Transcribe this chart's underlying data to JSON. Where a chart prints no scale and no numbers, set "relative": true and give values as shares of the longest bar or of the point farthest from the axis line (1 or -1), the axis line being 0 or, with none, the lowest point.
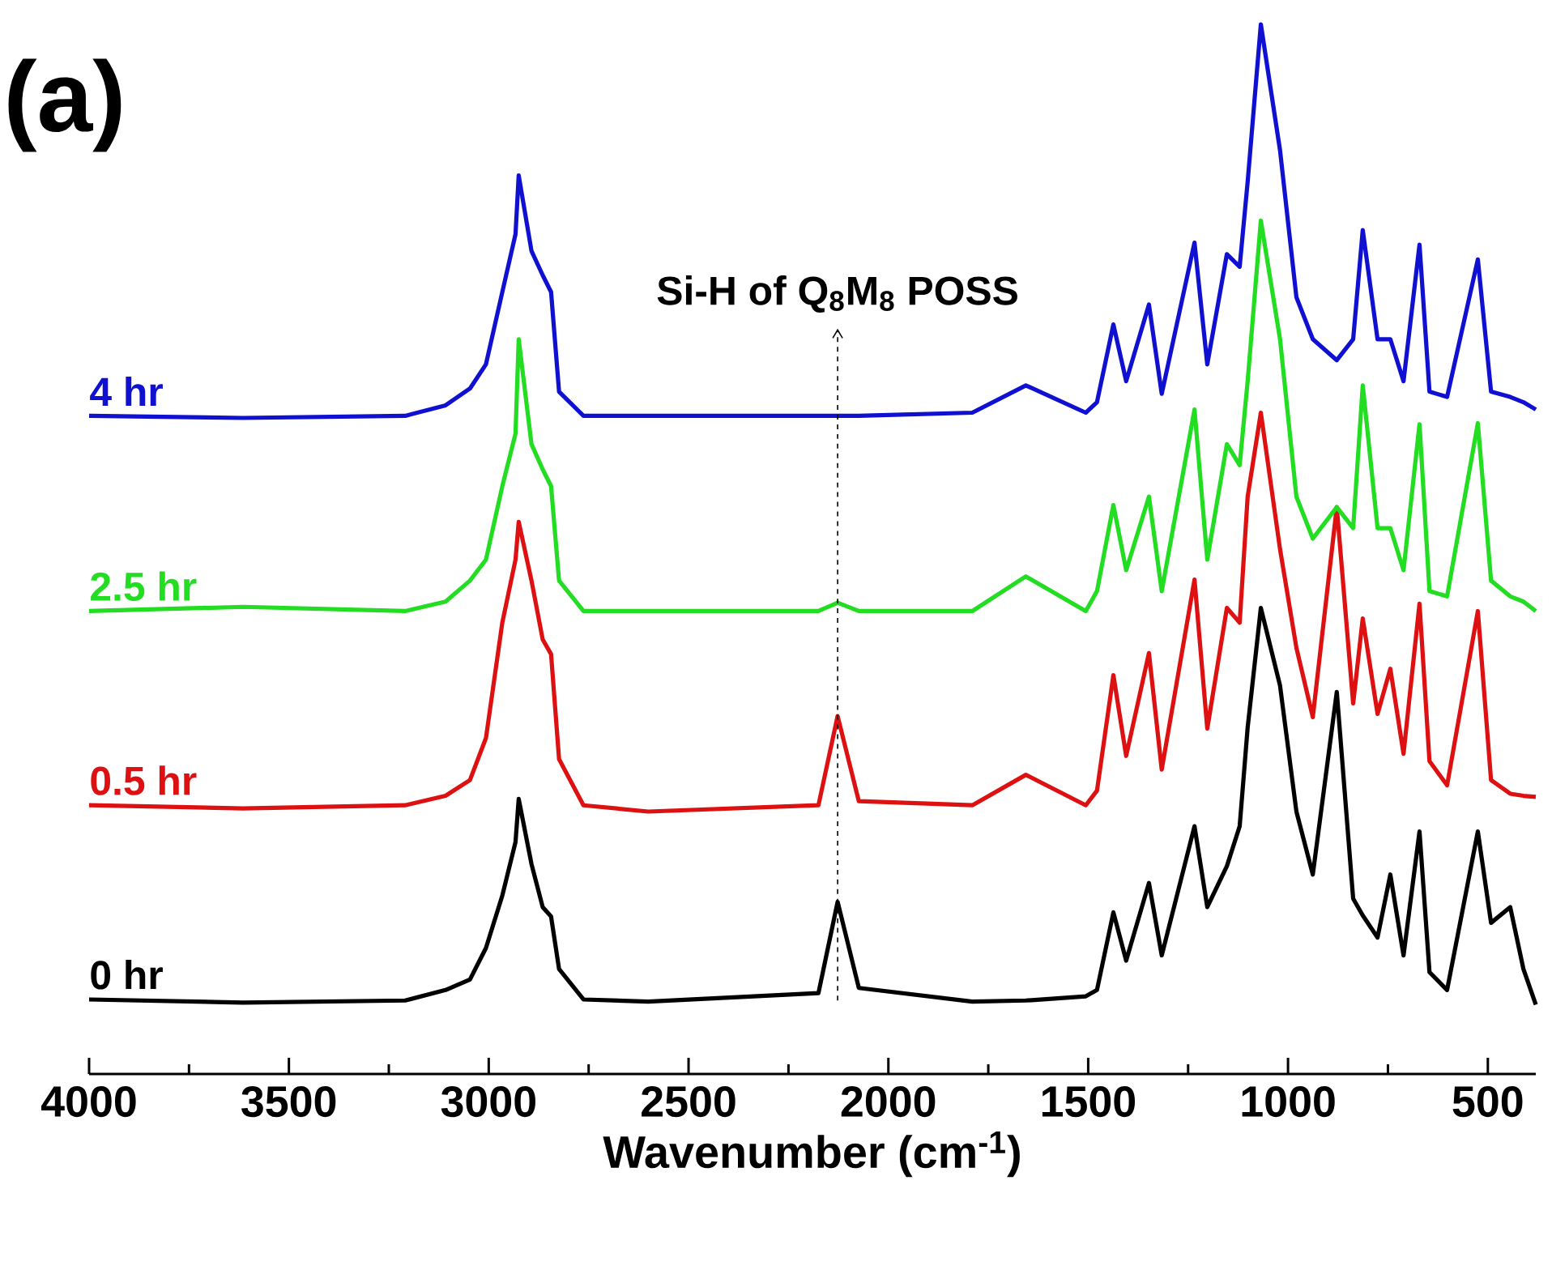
{
  "chart_data": {
    "type": "line",
    "title": "(a)",
    "xlabel": "Wavenumber (cm$^{-1}$)",
    "relative": true,
    "grid": false,
    "tick_labels": "x",
    "marker": "none",
    "line_style": "solid",
    "xlim": [
      4000,
      380
    ],
    "xticks": [
      4000,
      {
        "value": 3750,
        "label": null
      },
      3500,
      {
        "value": 3250,
        "label": null
      },
      3000,
      {
        "value": 2750,
        "label": null
      },
      2500,
      {
        "value": 2250,
        "label": null
      },
      2000,
      {
        "value": 1750,
        "label": null
      },
      1500,
      {
        "value": 1250,
        "label": null
      },
      1000,
      {
        "value": 750,
        "label": null
      },
      500
    ],
    "x": [
      4000,
      3615,
      3209,
      3108,
      3047,
      3007,
      2966,
      2933,
      2925,
      2893,
      2865,
      2844,
      2824,
      2763,
      2601,
      2175,
      2127,
      2074,
      1790,
      1656,
      1506,
      1478,
      1437,
      1405,
      1348,
      1316,
      1234,
      1202,
      1153,
      1121,
      1101,
      1068,
      1020,
      979,
      938,
      878,
      837,
      813,
      776,
      744,
      711,
      671,
      646,
      602,
      525,
      492,
      444,
      411,
      380
    ],
    "ref_lines": [
      {
        "axis": "x",
        "value": 2127,
        "label": "Si-H of Q$_{8}$M$_{8}$ POSS",
        "line_style": "dashed",
        "color": "#000000"
      }
    ],
    "series": [
      {
        "name": "0 hr",
        "color": "#000000",
        "values": [
          0.071,
          0.068,
          0.07,
          0.08,
          0.09,
          0.12,
          0.17,
          0.221,
          0.262,
          0.2,
          0.159,
          0.15,
          0.1,
          0.071,
          0.069,
          0.077,
          0.164,
          0.082,
          0.069,
          0.07,
          0.074,
          0.08,
          0.154,
          0.108,
          0.182,
          0.113,
          0.236,
          0.159,
          0.198,
          0.236,
          0.33,
          0.444,
          0.37,
          0.25,
          0.19,
          0.364,
          0.167,
          0.151,
          0.13,
          0.19,
          0.113,
          0.231,
          0.097,
          0.08,
          0.231,
          0.144,
          0.159,
          0.1,
          0.066
        ]
      },
      {
        "name": "0.5 hr",
        "color": "#dd1111",
        "values": [
          0.256,
          0.253,
          0.256,
          0.265,
          0.28,
          0.32,
          0.43,
          0.49,
          0.526,
          0.47,
          0.414,
          0.4,
          0.3,
          0.256,
          0.25,
          0.256,
          0.341,
          0.26,
          0.256,
          0.285,
          0.256,
          0.27,
          0.38,
          0.303,
          0.401,
          0.29,
          0.471,
          0.329,
          0.444,
          0.43,
          0.55,
          0.63,
          0.5,
          0.406,
          0.34,
          0.54,
          0.353,
          0.434,
          0.343,
          0.386,
          0.305,
          0.448,
          0.298,
          0.275,
          0.441,
          0.28,
          0.267,
          0.265,
          0.264
        ]
      },
      {
        "name": "2.5 hr",
        "color": "#22dd22",
        "values": [
          0.441,
          0.445,
          0.441,
          0.45,
          0.47,
          0.49,
          0.56,
          0.61,
          0.7,
          0.6,
          0.576,
          0.56,
          0.47,
          0.441,
          0.441,
          0.441,
          0.449,
          0.441,
          0.441,
          0.474,
          0.441,
          0.46,
          0.542,
          0.48,
          0.55,
          0.46,
          0.633,
          0.49,
          0.6,
          0.58,
          0.66,
          0.813,
          0.7,
          0.55,
          0.51,
          0.54,
          0.52,
          0.656,
          0.52,
          0.52,
          0.48,
          0.619,
          0.46,
          0.455,
          0.62,
          0.47,
          0.455,
          0.45,
          0.441
        ]
      },
      {
        "name": "4 hr",
        "color": "#1010d0",
        "values": [
          0.627,
          0.625,
          0.627,
          0.637,
          0.653,
          0.676,
          0.745,
          0.8,
          0.856,
          0.784,
          0.761,
          0.745,
          0.65,
          0.627,
          0.627,
          0.627,
          0.627,
          0.627,
          0.63,
          0.656,
          0.63,
          0.64,
          0.714,
          0.66,
          0.733,
          0.648,
          0.792,
          0.676,
          0.781,
          0.769,
          0.85,
          1.0,
          0.88,
          0.74,
          0.7,
          0.68,
          0.7,
          0.804,
          0.7,
          0.7,
          0.66,
          0.79,
          0.65,
          0.645,
          0.776,
          0.65,
          0.645,
          0.64,
          0.633
        ]
      }
    ]
  }
}
